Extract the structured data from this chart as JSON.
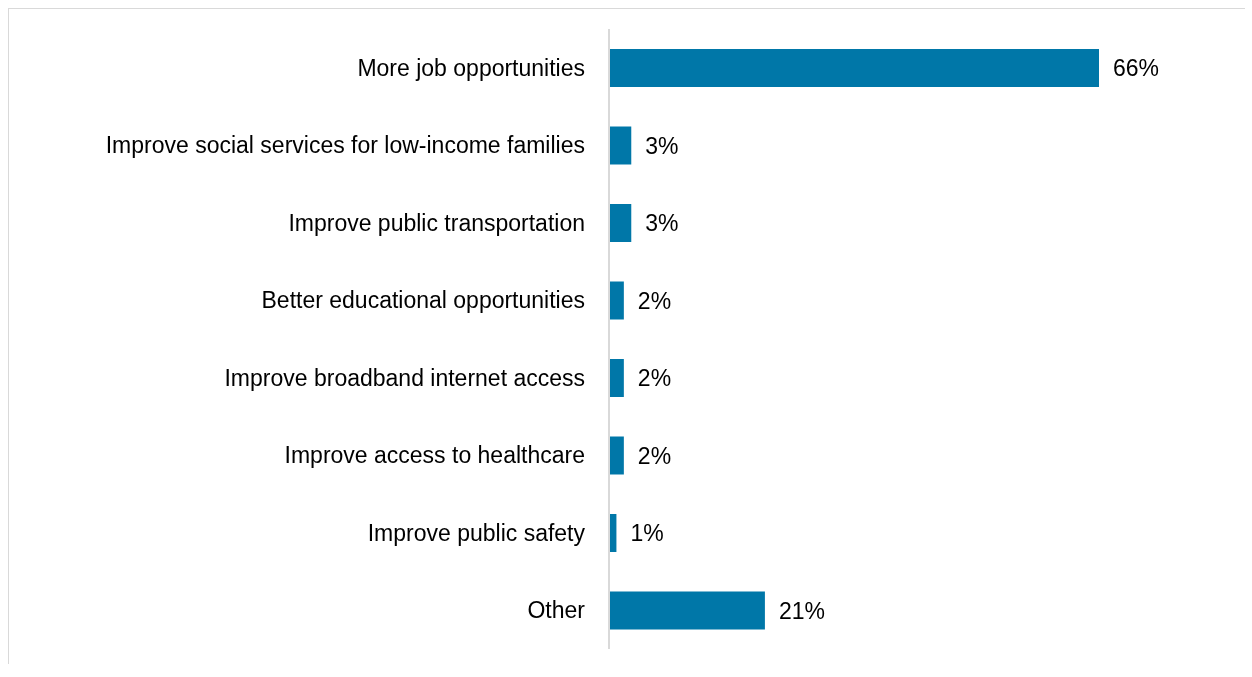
{
  "chart_data": {
    "type": "bar",
    "orientation": "horizontal",
    "categories": [
      "More job opportunities",
      "Improve social services for low-income families",
      "Improve public transportation",
      "Better educational opportunities",
      "Improve broadband internet access",
      "Improve access to healthcare",
      "Improve public safety",
      "Other"
    ],
    "values": [
      66,
      3,
      3,
      2,
      2,
      2,
      1,
      21
    ],
    "value_labels": [
      "66%",
      "3%",
      "3%",
      "2%",
      "2%",
      "2%",
      "1%",
      "21%"
    ],
    "color": "#0077a8",
    "tick_labels": "y"
  }
}
